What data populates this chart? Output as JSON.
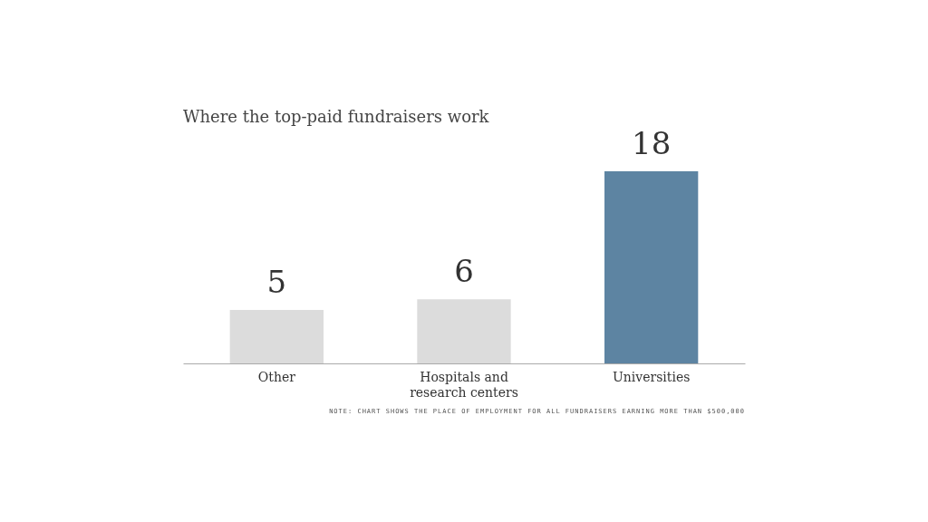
{
  "chart_data": {
    "type": "bar",
    "title": "Where the top-paid fundraisers work",
    "categories": [
      "Other",
      "Hospitals and\nresearch centers",
      "Universities"
    ],
    "values": [
      5,
      6,
      18
    ],
    "colors": [
      "#dcdcdc",
      "#dcdcdc",
      "#5d84a2"
    ],
    "data_labels": true,
    "annotations": [
      "NOTE: CHART SHOWS THE PLACE OF EMPLOYMENT FOR ALL FUNDRAISERS EARNING MORE THAN $500,000"
    ]
  }
}
